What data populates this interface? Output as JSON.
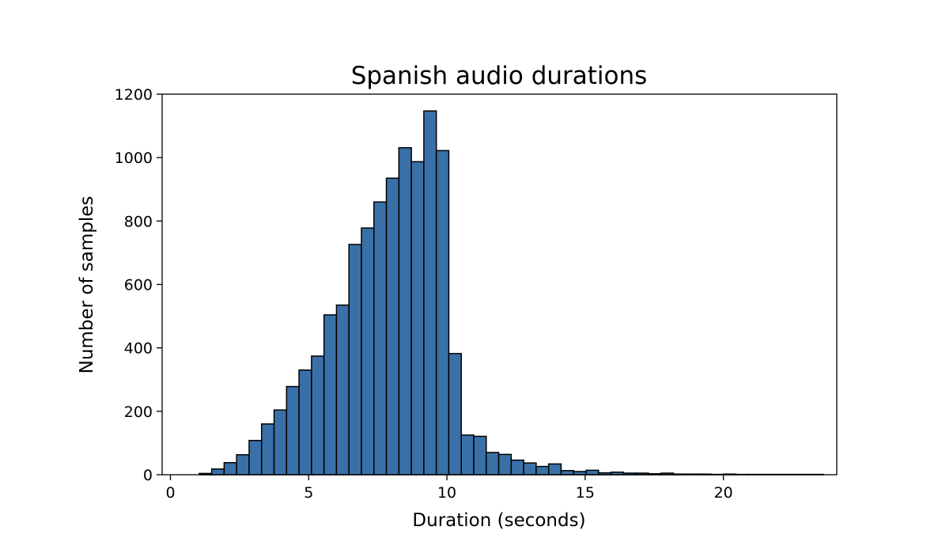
{
  "chart_data": {
    "type": "bar",
    "title": "Spanish audio durations",
    "xlabel": "Duration (seconds)",
    "ylabel": "Number of samples",
    "xlim": [
      -0.3,
      24.1
    ],
    "ylim": [
      0,
      1200
    ],
    "xticks": [
      0,
      5,
      10,
      15,
      20
    ],
    "yticks": [
      0,
      200,
      400,
      600,
      800,
      1000,
      1200
    ],
    "grid": false,
    "bar_color": "#3a70a8",
    "edge_color": "#000000",
    "bin_start": 1.04,
    "bin_width": 0.4514,
    "values": [
      4,
      18,
      38,
      63,
      108,
      160,
      204,
      278,
      330,
      374,
      504,
      535,
      726,
      778,
      860,
      935,
      1031,
      987,
      1147,
      1022,
      382,
      125,
      121,
      70,
      64,
      46,
      37,
      26,
      34,
      13,
      10,
      14,
      6,
      8,
      5,
      5,
      3,
      5,
      2,
      2,
      2,
      1,
      2,
      1,
      1,
      1,
      1,
      1,
      1,
      1
    ]
  }
}
